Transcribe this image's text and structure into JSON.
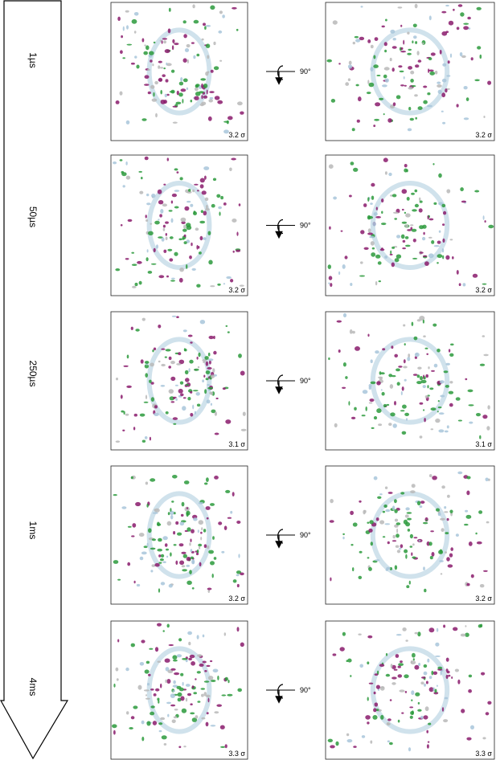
{
  "rows": [
    {
      "time": "1µs",
      "rotation": "90°",
      "left_sigma": "3.2 σ",
      "right_sigma": "3.2 σ"
    },
    {
      "time": "50µs",
      "rotation": "90°",
      "left_sigma": "3.2 σ",
      "right_sigma": "3.2 σ"
    },
    {
      "time": "250µs",
      "rotation": "90°",
      "left_sigma": "3.1 σ",
      "right_sigma": "3.1 σ"
    },
    {
      "time": "1ms",
      "rotation": "90°",
      "left_sigma": "3.2 σ",
      "right_sigma": "3.2 σ"
    },
    {
      "time": "4ms",
      "rotation": "90°",
      "left_sigma": "3.3 σ",
      "right_sigma": "3.3 σ"
    }
  ]
}
